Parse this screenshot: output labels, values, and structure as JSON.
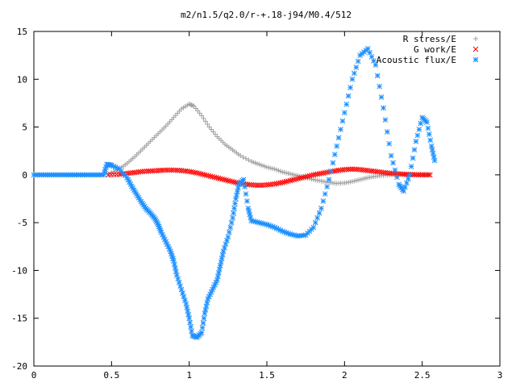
{
  "chart_data": {
    "type": "scatter",
    "title": "m2/n1.5/q2.0/r-+.18-j94/M0.4/512",
    "xlabel": "",
    "ylabel": "",
    "xlim": [
      0,
      3
    ],
    "ylim": [
      -20,
      15
    ],
    "x_ticks": [
      "0",
      "0.5",
      "1",
      "1.5",
      "2",
      "2.5",
      "3"
    ],
    "y_ticks": [
      "15",
      "10",
      "5",
      "0",
      "-5",
      "-10",
      "-15",
      "-20"
    ],
    "grid": false,
    "legend_position": "top-right",
    "series": [
      {
        "name": "R stress/E",
        "marker": "+",
        "color": "#a0a0a0",
        "points": [
          [
            0.48,
            0.1
          ],
          [
            0.55,
            0.6
          ],
          [
            0.6,
            1.2
          ],
          [
            0.65,
            1.9
          ],
          [
            0.7,
            2.7
          ],
          [
            0.75,
            3.5
          ],
          [
            0.8,
            4.3
          ],
          [
            0.85,
            5.1
          ],
          [
            0.9,
            6.0
          ],
          [
            0.95,
            6.9
          ],
          [
            1.0,
            7.4
          ],
          [
            1.03,
            7.2
          ],
          [
            1.08,
            6.2
          ],
          [
            1.13,
            5.0
          ],
          [
            1.18,
            4.0
          ],
          [
            1.23,
            3.2
          ],
          [
            1.28,
            2.6
          ],
          [
            1.33,
            2.0
          ],
          [
            1.4,
            1.4
          ],
          [
            1.45,
            1.1
          ],
          [
            1.5,
            0.8
          ],
          [
            1.55,
            0.6
          ],
          [
            1.6,
            0.3
          ],
          [
            1.65,
            0.1
          ],
          [
            1.7,
            -0.1
          ],
          [
            1.75,
            -0.3
          ],
          [
            1.8,
            -0.5
          ],
          [
            1.85,
            -0.65
          ],
          [
            1.9,
            -0.8
          ],
          [
            1.95,
            -0.9
          ],
          [
            2.0,
            -0.85
          ],
          [
            2.05,
            -0.7
          ],
          [
            2.1,
            -0.5
          ],
          [
            2.15,
            -0.3
          ],
          [
            2.2,
            -0.15
          ],
          [
            2.25,
            -0.05
          ],
          [
            2.3,
            0.0
          ],
          [
            2.35,
            0.05
          ],
          [
            2.4,
            0.05
          ],
          [
            2.45,
            0.05
          ],
          [
            2.5,
            0.05
          ],
          [
            2.55,
            0.05
          ]
        ]
      },
      {
        "name": "G work/E",
        "marker": "x",
        "color": "#ff0000",
        "points": [
          [
            0.48,
            0.0
          ],
          [
            0.55,
            0.05
          ],
          [
            0.6,
            0.15
          ],
          [
            0.65,
            0.25
          ],
          [
            0.7,
            0.35
          ],
          [
            0.75,
            0.4
          ],
          [
            0.8,
            0.45
          ],
          [
            0.85,
            0.5
          ],
          [
            0.9,
            0.5
          ],
          [
            0.95,
            0.45
          ],
          [
            1.0,
            0.35
          ],
          [
            1.05,
            0.2
          ],
          [
            1.1,
            0.0
          ],
          [
            1.15,
            -0.2
          ],
          [
            1.2,
            -0.4
          ],
          [
            1.25,
            -0.6
          ],
          [
            1.3,
            -0.8
          ],
          [
            1.35,
            -0.95
          ],
          [
            1.4,
            -1.05
          ],
          [
            1.45,
            -1.1
          ],
          [
            1.5,
            -1.05
          ],
          [
            1.55,
            -0.95
          ],
          [
            1.6,
            -0.8
          ],
          [
            1.65,
            -0.6
          ],
          [
            1.7,
            -0.4
          ],
          [
            1.75,
            -0.2
          ],
          [
            1.8,
            0.0
          ],
          [
            1.85,
            0.15
          ],
          [
            1.9,
            0.3
          ],
          [
            1.95,
            0.45
          ],
          [
            2.0,
            0.55
          ],
          [
            2.05,
            0.6
          ],
          [
            2.1,
            0.55
          ],
          [
            2.15,
            0.45
          ],
          [
            2.2,
            0.35
          ],
          [
            2.25,
            0.25
          ],
          [
            2.3,
            0.15
          ],
          [
            2.35,
            0.1
          ],
          [
            2.4,
            0.05
          ],
          [
            2.45,
            0.02
          ],
          [
            2.5,
            0.0
          ],
          [
            2.55,
            0.0
          ]
        ]
      },
      {
        "name": "Acoustic flux/E",
        "marker": "*",
        "color": "#1e90ff",
        "points": [
          [
            0.0,
            0.0
          ],
          [
            0.05,
            0.0
          ],
          [
            0.1,
            0.0
          ],
          [
            0.15,
            0.0
          ],
          [
            0.2,
            0.0
          ],
          [
            0.25,
            0.0
          ],
          [
            0.3,
            0.0
          ],
          [
            0.35,
            0.0
          ],
          [
            0.4,
            0.0
          ],
          [
            0.45,
            0.0
          ],
          [
            0.47,
            1.1
          ],
          [
            0.5,
            1.0
          ],
          [
            0.55,
            0.6
          ],
          [
            0.6,
            -0.3
          ],
          [
            0.63,
            -1.2
          ],
          [
            0.66,
            -2.0
          ],
          [
            0.69,
            -2.8
          ],
          [
            0.72,
            -3.5
          ],
          [
            0.75,
            -4.0
          ],
          [
            0.78,
            -4.6
          ],
          [
            0.8,
            -5.2
          ],
          [
            0.82,
            -6.0
          ],
          [
            0.85,
            -7.0
          ],
          [
            0.88,
            -8.0
          ],
          [
            0.9,
            -9.0
          ],
          [
            0.92,
            -10.5
          ],
          [
            0.95,
            -12.0
          ],
          [
            0.98,
            -13.5
          ],
          [
            1.0,
            -15.0
          ],
          [
            1.02,
            -16.8
          ],
          [
            1.05,
            -17.0
          ],
          [
            1.08,
            -16.5
          ],
          [
            1.1,
            -14.5
          ],
          [
            1.12,
            -13.0
          ],
          [
            1.15,
            -12.0
          ],
          [
            1.18,
            -11.0
          ],
          [
            1.2,
            -9.5
          ],
          [
            1.22,
            -8.0
          ],
          [
            1.25,
            -6.5
          ],
          [
            1.28,
            -4.5
          ],
          [
            1.3,
            -2.5
          ],
          [
            1.32,
            -1.0
          ],
          [
            1.35,
            -0.5
          ],
          [
            1.38,
            -3.5
          ],
          [
            1.4,
            -4.8
          ],
          [
            1.45,
            -5.0
          ],
          [
            1.5,
            -5.2
          ],
          [
            1.55,
            -5.5
          ],
          [
            1.6,
            -5.9
          ],
          [
            1.65,
            -6.2
          ],
          [
            1.7,
            -6.4
          ],
          [
            1.75,
            -6.3
          ],
          [
            1.8,
            -5.5
          ],
          [
            1.85,
            -3.5
          ],
          [
            1.9,
            -0.5
          ],
          [
            1.95,
            3.0
          ],
          [
            2.0,
            6.5
          ],
          [
            2.05,
            10.0
          ],
          [
            2.1,
            12.5
          ],
          [
            2.15,
            13.2
          ],
          [
            2.2,
            11.5
          ],
          [
            2.25,
            7.0
          ],
          [
            2.3,
            2.0
          ],
          [
            2.35,
            -1.0
          ],
          [
            2.38,
            -1.7
          ],
          [
            2.42,
            0.0
          ],
          [
            2.46,
            3.5
          ],
          [
            2.5,
            6.0
          ],
          [
            2.53,
            5.5
          ],
          [
            2.56,
            3.0
          ],
          [
            2.58,
            1.5
          ]
        ]
      }
    ]
  }
}
